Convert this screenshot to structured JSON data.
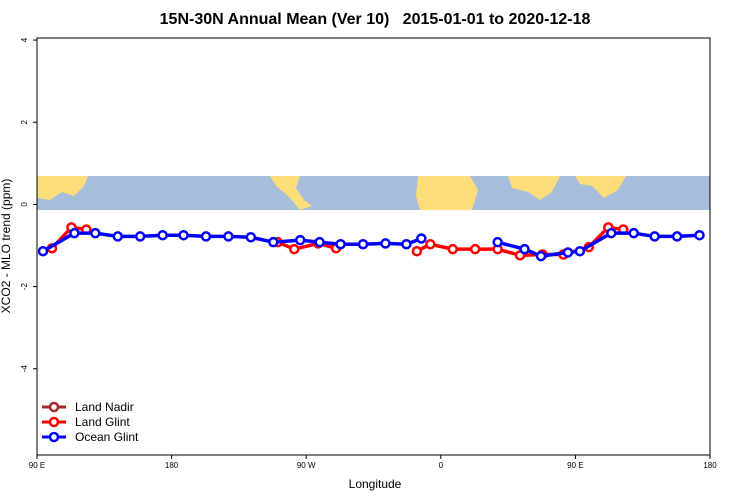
{
  "chart_data": {
    "type": "line",
    "title": "15N-30N Annual Mean (Ver 10)   2015-01-01 to 2020-12-18",
    "x_label": "Longitude",
    "y_label": "XCO2 - MLO trend (ppm)",
    "xlim": [
      90,
      540
    ],
    "xticks": [
      {
        "value": 90,
        "label": "90 E"
      },
      180,
      {
        "value": 270,
        "label": "90 W"
      },
      {
        "value": 360,
        "label": "0"
      },
      {
        "value": 450,
        "label": "90 E"
      },
      {
        "value": 540,
        "label": "180"
      }
    ],
    "ylim": [
      -6.1,
      4.05
    ],
    "yticks": [
      -4,
      -2,
      0,
      2,
      4
    ],
    "legend": "bottom-left",
    "series": [
      {
        "name": "Land Nadir",
        "color": "#a52a2a",
        "x": [],
        "values": []
      },
      {
        "name": "Land Glint",
        "color": "#ff0000",
        "x": [
          100,
          113,
          123,
          null,
          251,
          262,
          278,
          290,
          null,
          344,
          353,
          368,
          383,
          398,
          413,
          428,
          442,
          459,
          472,
          482
        ],
        "values": [
          -1.07,
          -0.56,
          -0.61,
          null,
          -0.92,
          -1.09,
          -0.95,
          -1.07,
          null,
          -1.14,
          -0.97,
          -1.09,
          -1.09,
          -1.09,
          -1.24,
          -1.22,
          -1.22,
          -1.04,
          -0.56,
          -0.61
        ]
      },
      {
        "name": "Ocean Glint",
        "color": "#0000ff",
        "x": [
          94,
          115,
          129,
          144,
          159,
          174,
          188,
          203,
          218,
          233,
          248,
          266,
          279,
          293,
          308,
          323,
          337,
          347,
          null,
          398,
          416,
          427,
          445,
          453,
          474,
          489,
          503,
          518,
          533
        ],
        "values": [
          -1.14,
          -0.7,
          -0.7,
          -0.78,
          -0.78,
          -0.75,
          -0.75,
          -0.78,
          -0.78,
          -0.8,
          -0.92,
          -0.87,
          -0.92,
          -0.97,
          -0.97,
          -0.95,
          -0.97,
          -0.83,
          null,
          -0.92,
          -1.09,
          -1.26,
          -1.17,
          -1.14,
          -0.7,
          -0.7,
          -0.78,
          -0.78,
          -0.75
        ]
      }
    ]
  }
}
